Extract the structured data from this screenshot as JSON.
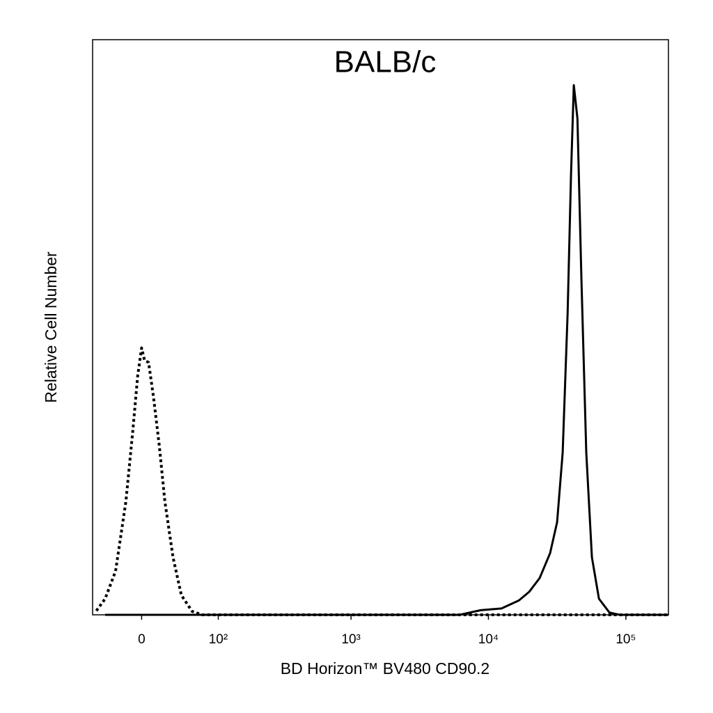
{
  "chart_data": {
    "type": "line",
    "title": "BALB/c",
    "x_label": "BD Horizon™ BV480 CD90.2",
    "y_label": "Relative Cell Number",
    "xscale": "biexponential",
    "xlim": [
      -55,
      204000
    ],
    "ylim": [
      0,
      100
    ],
    "xticks": [
      0,
      {
        "value": 100,
        "label": "10²"
      },
      {
        "value": 1000,
        "label": "10³"
      },
      {
        "value": 10000,
        "label": "10⁴"
      },
      {
        "value": 100000,
        "label": "10⁵"
      }
    ],
    "series": [
      {
        "color": "#000000",
        "dash": "dotted",
        "x": [
          -50,
          -39,
          -27,
          -16,
          -9,
          -4,
          0,
          3,
          7,
          12,
          18,
          24,
          33,
          43,
          57,
          72,
          204000
        ],
        "values": [
          0.7,
          2.8,
          7.6,
          19.7,
          31.8,
          41.5,
          46.4,
          44.2,
          43.9,
          37.9,
          29.4,
          19.7,
          10.0,
          3.4,
          0.6,
          0,
          0
        ]
      },
      {
        "color": "#000000",
        "dash": "solid",
        "x": [
          -39,
          72,
          6180,
          8770,
          12450,
          16650,
          19800,
          23600,
          28100,
          31600,
          34700,
          37700,
          39900,
          41800,
          44400,
          47500,
          51500,
          56600,
          63700,
          75900,
          90200,
          204000
        ],
        "values": [
          0,
          0,
          0,
          0.8,
          1.1,
          2.5,
          4.0,
          6.4,
          10.7,
          16.1,
          28.2,
          52.4,
          76.6,
          92.1,
          86.3,
          58.5,
          28.2,
          10.0,
          2.8,
          0.4,
          0,
          0
        ]
      }
    ]
  }
}
